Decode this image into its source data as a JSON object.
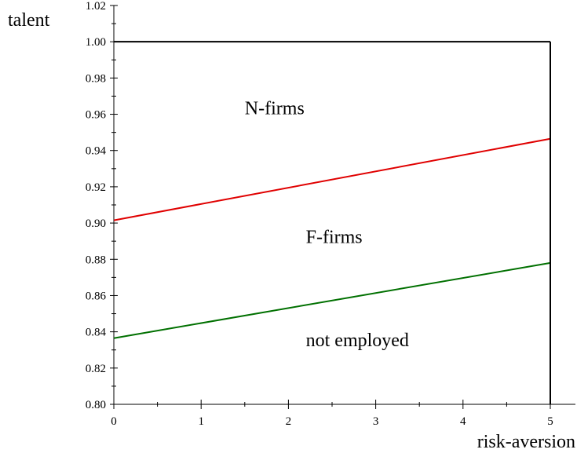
{
  "chart_data": {
    "type": "line",
    "xlabel": "risk-aversion",
    "ylabel": "talent",
    "xlim": [
      0,
      5.3
    ],
    "ylim": [
      0.8,
      1.02
    ],
    "x_ticks": [
      {
        "value": 0,
        "label": "0"
      },
      {
        "value": 1,
        "label": "1"
      },
      {
        "value": 2,
        "label": "2"
      },
      {
        "value": 3,
        "label": "3"
      },
      {
        "value": 4,
        "label": "4"
      },
      {
        "value": 5,
        "label": "5"
      }
    ],
    "y_ticks": [
      {
        "value": 0.8,
        "label": "0.80"
      },
      {
        "value": 0.82,
        "label": "0.82"
      },
      {
        "value": 0.84,
        "label": "0.84"
      },
      {
        "value": 0.86,
        "label": "0.86"
      },
      {
        "value": 0.88,
        "label": "0.88"
      },
      {
        "value": 0.9,
        "label": "0.90"
      },
      {
        "value": 0.92,
        "label": "0.92"
      },
      {
        "value": 0.94,
        "label": "0.94"
      },
      {
        "value": 0.96,
        "label": "0.96"
      },
      {
        "value": 0.98,
        "label": "0.98"
      },
      {
        "value": 1.0,
        "label": "1.00"
      },
      {
        "value": 1.02,
        "label": "1.02"
      }
    ],
    "grid": false,
    "series": [
      {
        "color": "#e00000",
        "x": [
          0,
          5
        ],
        "y": [
          0.9015,
          0.9465
        ]
      },
      {
        "color": "#007000",
        "x": [
          0,
          5
        ],
        "y": [
          0.8365,
          0.878
        ]
      },
      {
        "color": "#000000",
        "x": [
          0,
          5
        ],
        "y": [
          1.0,
          1.0
        ]
      },
      {
        "color": "#000000",
        "x": [
          5,
          5
        ],
        "y": [
          0.8,
          1.0
        ]
      }
    ],
    "annotations": [
      {
        "text": "N-firms",
        "x": 1.5,
        "y": 0.96
      },
      {
        "text": "F-firms",
        "x": 2.2,
        "y": 0.889
      },
      {
        "text": "not employed",
        "x": 2.2,
        "y": 0.832
      }
    ]
  }
}
